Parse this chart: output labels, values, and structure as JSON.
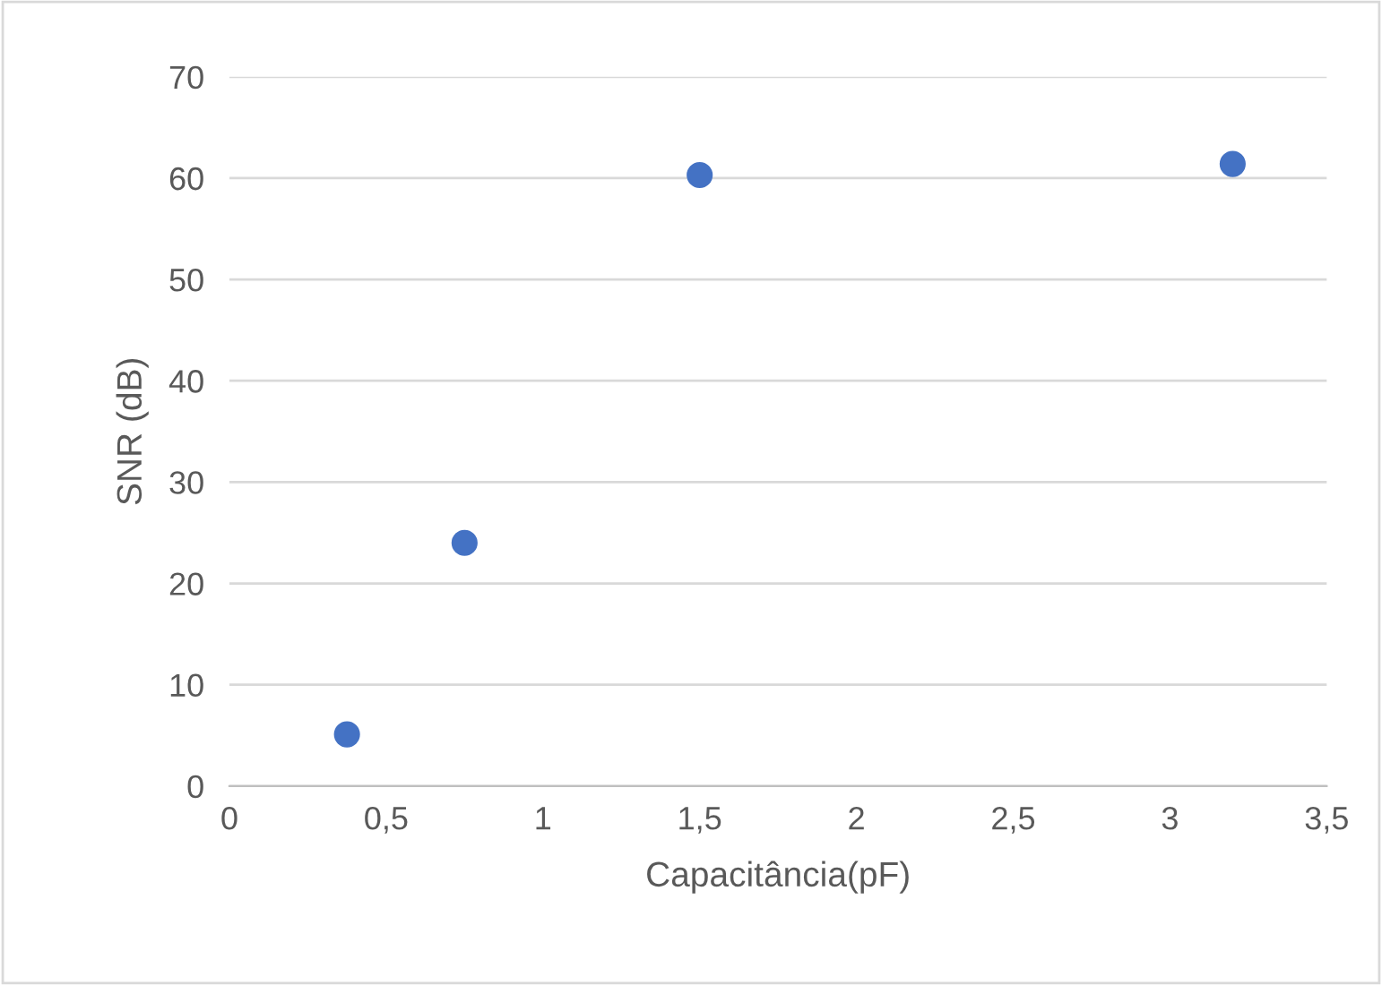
{
  "chart_data": {
    "type": "scatter",
    "xlabel": "Capacitância(pF)",
    "ylabel": "SNR (dB)",
    "x": [
      0.375,
      0.75,
      1.5,
      3.2
    ],
    "series": [
      {
        "color": "#4472c4",
        "values": [
          5.1,
          24.0,
          60.3,
          61.4
        ]
      }
    ],
    "xlim": [
      0,
      3.5
    ],
    "xticks": [
      0,
      {
        "value": 0.5,
        "label": "0,5"
      },
      1,
      {
        "value": 1.5,
        "label": "1,5"
      },
      2,
      {
        "value": 2.5,
        "label": "2,5"
      },
      3,
      {
        "value": 3.5,
        "label": "3,5"
      }
    ],
    "ylim": [
      0,
      70
    ],
    "yticks": [
      0,
      10,
      20,
      30,
      40,
      50,
      60,
      70
    ],
    "grid": "y",
    "marker": "circle",
    "legend": false
  }
}
